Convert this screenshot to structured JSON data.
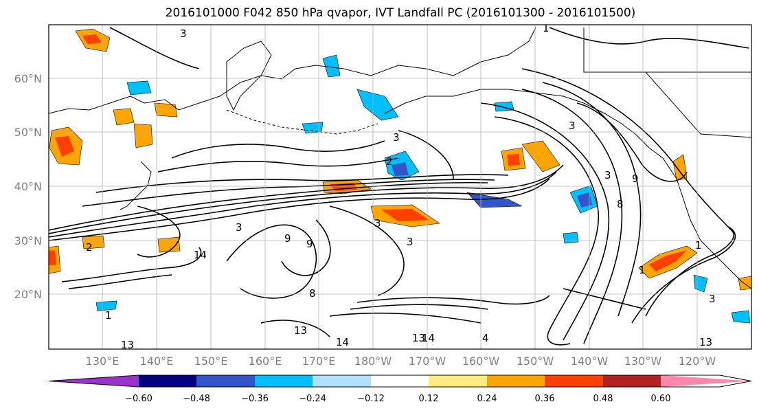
{
  "title": "2016101000 F042 850 hPa qvapor, IVT Landfall PC (2016101300 - 2016101500)",
  "map": {
    "lat_labels": [
      "60°N",
      "50°N",
      "40°N",
      "30°N",
      "20°N"
    ],
    "lon_labels": [
      "130°E",
      "140°E",
      "150°E",
      "160°E",
      "170°E",
      "180°W",
      "170°W",
      "160°W",
      "150°W",
      "140°W",
      "130°W",
      "120°W"
    ],
    "contour_labels": [
      "3",
      "1",
      "2",
      "3",
      "3",
      "2",
      "1",
      "3",
      "9",
      "8",
      "3",
      "9",
      "3",
      "14",
      "9",
      "3",
      "8",
      "1",
      "13",
      "14",
      "13",
      "14",
      "4",
      "13",
      "1",
      "3",
      "13"
    ],
    "colors": {
      "land_outline": "#000000",
      "grid": "#b0b0b0",
      "contour": "#000000"
    }
  },
  "colorbar": {
    "ticks": [
      "−0.60",
      "−0.48",
      "−0.36",
      "−0.24",
      "−0.12",
      "0.12",
      "0.24",
      "0.36",
      "0.48",
      "0.60"
    ],
    "colors": [
      "#9933cc",
      "#000080",
      "#3355cc",
      "#00bfff",
      "#b0e2ff",
      "#ffffff",
      "#ffeb80",
      "#ffa500",
      "#ff4000",
      "#b22222",
      "#ff88aa"
    ]
  }
}
